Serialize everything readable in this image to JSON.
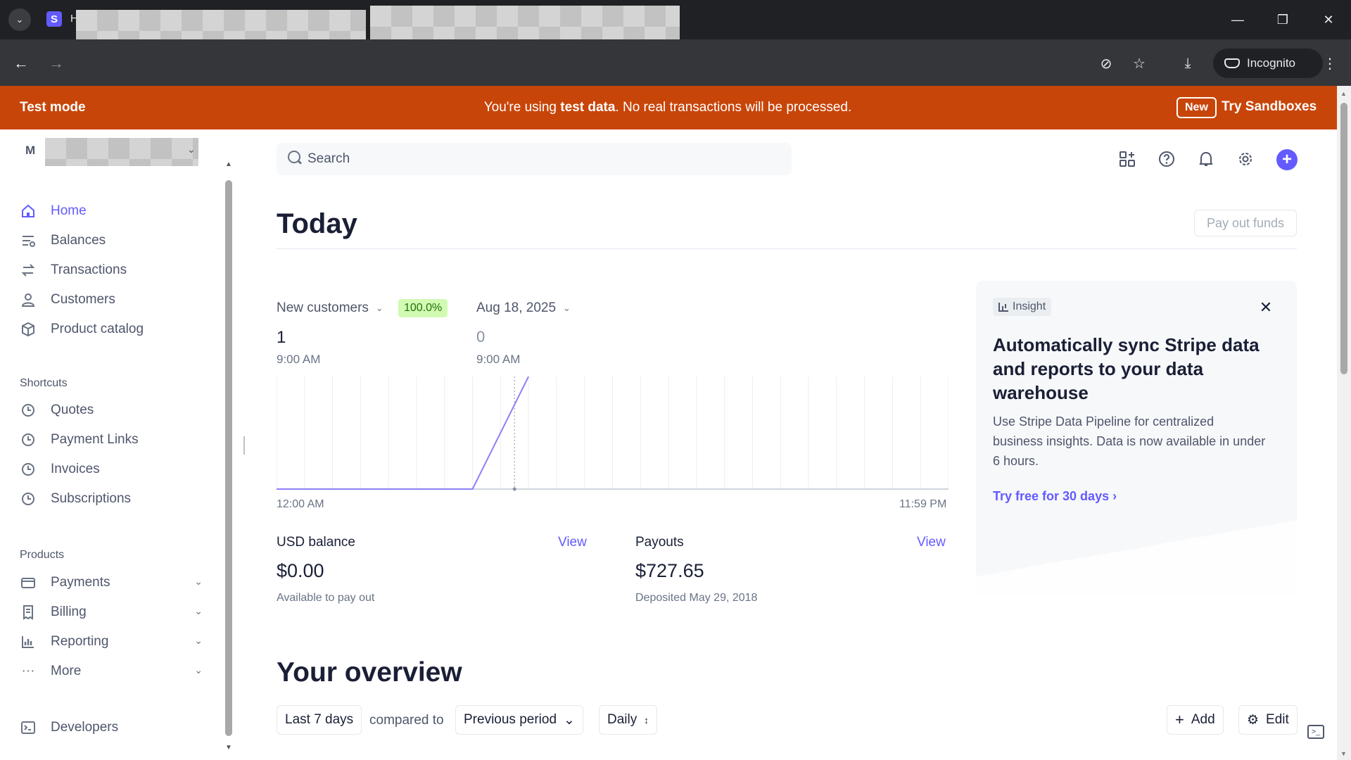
{
  "browser": {
    "tab_title": "H",
    "favicon_letter": "S",
    "incognito_label": "Incognito"
  },
  "banner": {
    "mode": "Test mode",
    "message_prefix": "You're using ",
    "message_bold": "test data",
    "message_suffix": ". No real transactions will be processed.",
    "new_badge": "New",
    "cta": "Try Sandboxes"
  },
  "sidebar": {
    "account_initial": "M",
    "nav": [
      {
        "label": "Home",
        "icon": "home-icon"
      },
      {
        "label": "Balances",
        "icon": "balances-icon"
      },
      {
        "label": "Transactions",
        "icon": "transactions-icon"
      },
      {
        "label": "Customers",
        "icon": "customers-icon"
      },
      {
        "label": "Product catalog",
        "icon": "product-catalog-icon"
      }
    ],
    "shortcuts_label": "Shortcuts",
    "shortcuts": [
      {
        "label": "Quotes",
        "icon": "clock-icon"
      },
      {
        "label": "Payment Links",
        "icon": "clock-icon"
      },
      {
        "label": "Invoices",
        "icon": "clock-icon"
      },
      {
        "label": "Subscriptions",
        "icon": "clock-icon"
      }
    ],
    "products_label": "Products",
    "products": [
      {
        "label": "Payments",
        "icon": "payments-icon"
      },
      {
        "label": "Billing",
        "icon": "billing-icon"
      },
      {
        "label": "Reporting",
        "icon": "reporting-icon"
      },
      {
        "label": "More",
        "icon": "more-icon"
      }
    ],
    "developers": {
      "label": "Developers",
      "icon": "terminal-icon"
    }
  },
  "search": {
    "placeholder": "Search"
  },
  "today": {
    "title": "Today",
    "payout_button": "Pay out funds",
    "metric": {
      "name": "New customers",
      "change": "100.0%",
      "compare_date": "Aug 18, 2025",
      "current_value": "1",
      "current_time": "9:00 AM",
      "compare_value": "0",
      "compare_time": "9:00 AM",
      "axis_start": "12:00 AM",
      "axis_end": "11:59 PM"
    }
  },
  "balances": {
    "usd": {
      "label": "USD balance",
      "view": "View",
      "value": "$0.00",
      "sub": "Available to pay out"
    },
    "payouts": {
      "label": "Payouts",
      "view": "View",
      "value": "$727.65",
      "sub": "Deposited May 29, 2018"
    }
  },
  "insight": {
    "tag": "Insight",
    "title": "Automatically sync Stripe data and reports to your data warehouse",
    "body": "Use Stripe Data Pipeline for centralized business insights. Data is now available in under 6 hours.",
    "cta": "Try free for 30 days"
  },
  "overview": {
    "title": "Your overview",
    "range": "Last 7 days",
    "compared_to": "compared to",
    "comparison": "Previous period",
    "interval": "Daily",
    "add": "Add",
    "edit": "Edit"
  },
  "colors": {
    "accent": "#635bff",
    "banner": "#c84509",
    "badge_bg": "#d1fab3",
    "badge_fg": "#217005"
  },
  "chart_data": {
    "type": "line",
    "title": "",
    "xlabel": "",
    "ylabel": "",
    "x_ticks": [
      "12:00 AM",
      "11:59 PM"
    ],
    "x_hours": [
      0,
      7,
      9
    ],
    "series": [
      {
        "name": "New customers",
        "values": [
          0,
          0,
          1
        ]
      }
    ],
    "ylim": [
      0,
      1
    ],
    "xlim": [
      0,
      24
    ],
    "grid": true
  }
}
